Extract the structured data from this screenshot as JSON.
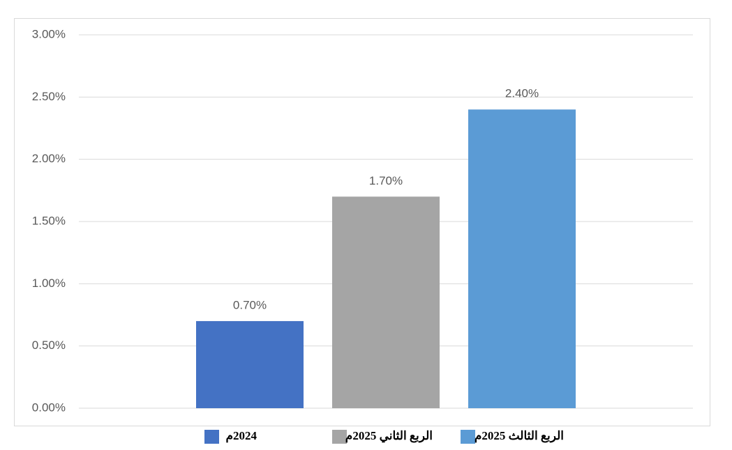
{
  "chart_data": {
    "type": "bar",
    "categories": [
      null
    ],
    "series": [
      {
        "name": "2024م",
        "color": "#4472c4",
        "values": [
          0.7
        ],
        "value_labels": [
          "0.70%"
        ]
      },
      {
        "name": "الربع الثاني 2025م",
        "color": "#a5a5a5",
        "values": [
          1.7
        ],
        "value_labels": [
          "1.70%"
        ]
      },
      {
        "name": "الربع الثالث 2025م",
        "color": "#5b9bd5",
        "values": [
          2.4
        ],
        "value_labels": [
          "2.40%"
        ]
      }
    ],
    "ylim": [
      0,
      3
    ],
    "yticks": [
      {
        "value": 0,
        "label": "0.00%"
      },
      {
        "value": 0.5,
        "label": "0.50%"
      },
      {
        "value": 1,
        "label": "1.00%"
      },
      {
        "value": 1.5,
        "label": "1.50%"
      },
      {
        "value": 2,
        "label": "2.00%"
      },
      {
        "value": 2.5,
        "label": "2.50%"
      },
      {
        "value": 3,
        "label": "3.00%"
      }
    ],
    "grid": true,
    "legend": "bottom"
  }
}
